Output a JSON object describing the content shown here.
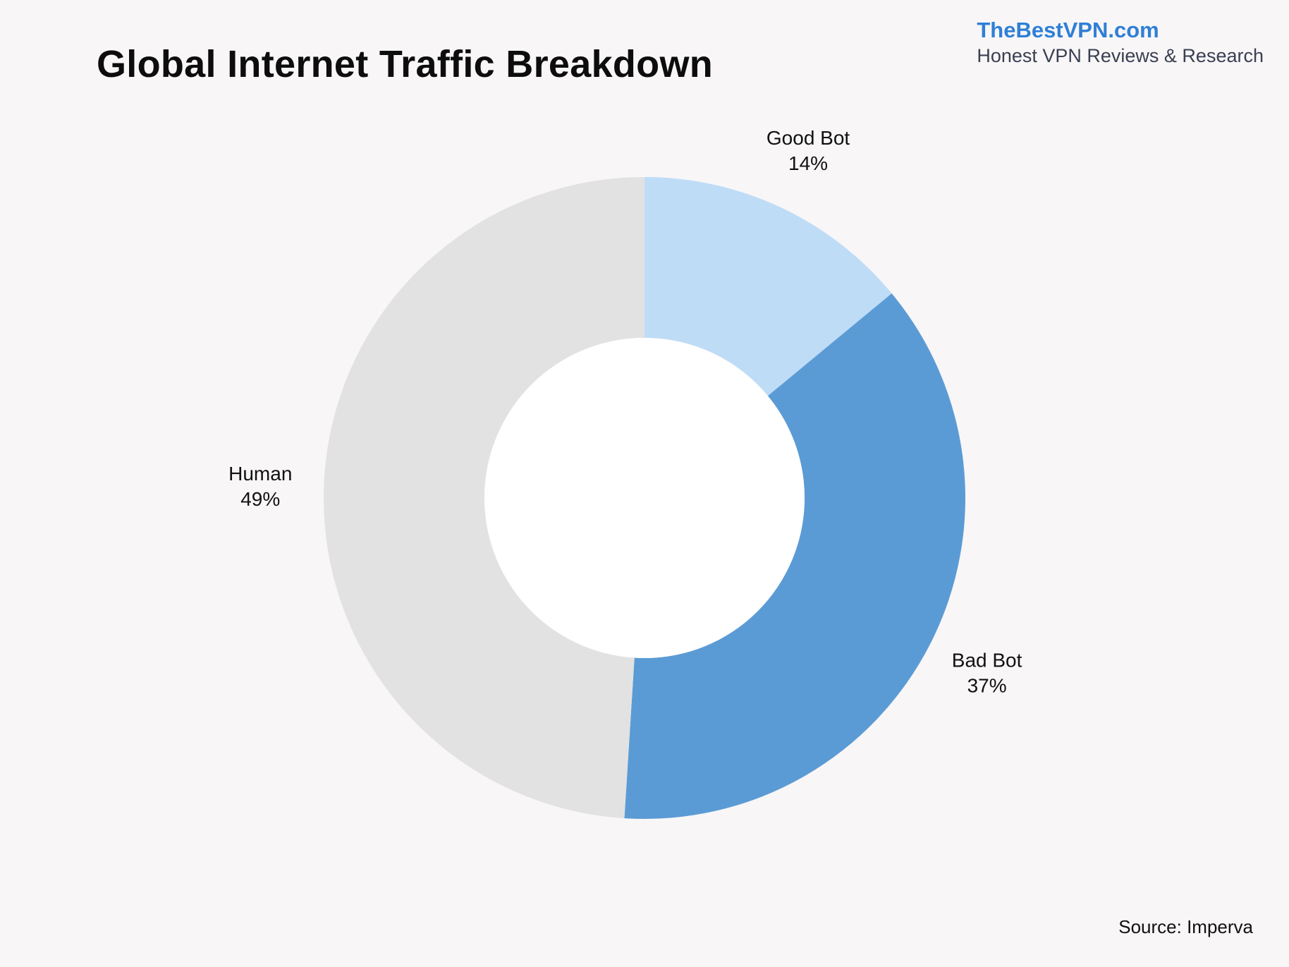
{
  "brand": {
    "name": "TheBestVPN.com",
    "tagline": "Honest VPN Reviews & Research"
  },
  "footer": {
    "source": "Source: Imperva"
  },
  "chart_data": {
    "type": "pie",
    "style": "donut",
    "title": "Global Internet Traffic Breakdown",
    "start": "12 o'clock, clockwise",
    "slices": [
      {
        "label": "Good Bot",
        "value": 14,
        "display": "14%",
        "color": "#bfdcf7"
      },
      {
        "label": "Bad Bot",
        "value": 37,
        "display": "37%",
        "color": "#5b9bd5"
      },
      {
        "label": "Human",
        "value": 49,
        "display": "49%",
        "color": "#e2e2e2"
      }
    ],
    "center_color": "#ffffff",
    "legend": "none",
    "grid": false
  }
}
